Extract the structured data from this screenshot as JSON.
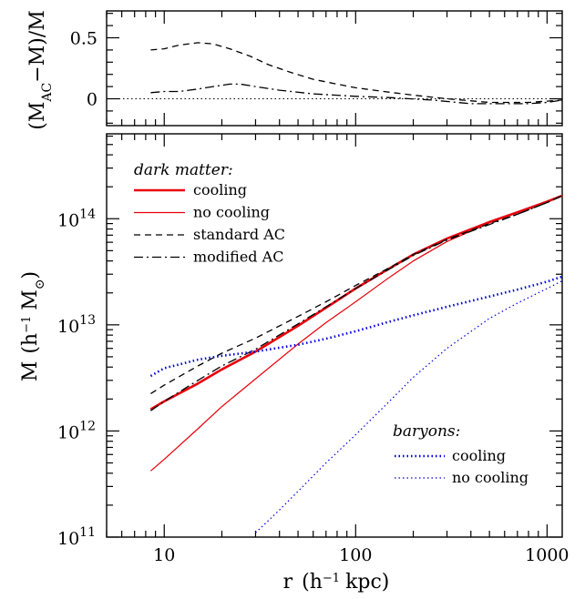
{
  "chart_data": [
    {
      "type": "line",
      "panel": "top",
      "xscale": "log",
      "xlim": [
        5,
        1200
      ],
      "ylim": [
        -0.22,
        0.72
      ],
      "yticks": [
        0,
        0.5
      ],
      "ytick_labels": [
        "0",
        "0.5"
      ],
      "ylabel_main": "(M",
      "ylabel_sub": "AC",
      "ylabel_rest": "−M)/M",
      "reference_line": 0,
      "series": [
        {
          "key": "standard",
          "color": "#000000",
          "dash": "7,5",
          "x": [
            8.5,
            10,
            12,
            15,
            18,
            22,
            28,
            35,
            45,
            60,
            80,
            100,
            140,
            200,
            300,
            500,
            800,
            1200
          ],
          "y": [
            0.4,
            0.41,
            0.44,
            0.46,
            0.45,
            0.41,
            0.35,
            0.28,
            0.22,
            0.16,
            0.12,
            0.09,
            0.06,
            0.03,
            0.0,
            -0.03,
            -0.03,
            -0.01
          ]
        },
        {
          "key": "modified",
          "color": "#000000",
          "dash": "10,4,2,4",
          "x": [
            8.5,
            10,
            12,
            15,
            18,
            22,
            25,
            30,
            40,
            60,
            100,
            150,
            250,
            400,
            600,
            800,
            1000,
            1200
          ],
          "y": [
            0.05,
            0.06,
            0.06,
            0.08,
            0.1,
            0.12,
            0.12,
            0.1,
            0.07,
            0.04,
            0.02,
            0.01,
            -0.01,
            -0.04,
            -0.04,
            -0.04,
            -0.03,
            -0.01
          ]
        }
      ]
    },
    {
      "type": "line",
      "panel": "bottom",
      "xscale": "log",
      "yscale": "log",
      "xlim": [
        5,
        1200
      ],
      "ylim_exp": [
        11,
        14.8
      ],
      "xticks": [
        10,
        100,
        1000
      ],
      "xtick_labels": [
        "10",
        "100",
        "1000"
      ],
      "ytick_exponents": [
        11,
        12,
        13,
        14
      ],
      "ytick_base": "10",
      "ytick_powers": [
        "11",
        "12",
        "13",
        "14"
      ],
      "xlabel_main": "r",
      "xlabel_paren": "(h",
      "xlabel_sup": "−1",
      "xlabel_unit": "kpc)",
      "ylabel_main": "M",
      "ylabel_paren": "(h",
      "ylabel_sup": "−1",
      "ylabel_unit": "M",
      "ylabel_sub": "⊙",
      "ylabel_close": ")",
      "legend_dm_title": "dark matter:",
      "legend_baryon_title": "baryons:",
      "series": [
        {
          "key": "dm_cooling",
          "name": "cooling",
          "group": "dark matter",
          "color": "#e8000b",
          "width": 2.6,
          "dash": "",
          "x": [
            8.5,
            10,
            15,
            20,
            30,
            50,
            70,
            100,
            150,
            200,
            300,
            500,
            700,
            1000,
            1200
          ],
          "y": [
            1600000000000.0,
            1900000000000.0,
            2800000000000.0,
            3800000000000.0,
            5600000000000.0,
            9800000000000.0,
            14500000000000.0,
            22000000000000.0,
            34000000000000.0,
            46000000000000.0,
            65000000000000.0,
            93000000000000.0,
            115000000000000.0,
            145000000000000.0,
            165000000000000.0
          ]
        },
        {
          "key": "dm_nocooling",
          "name": "no cooling",
          "group": "dark matter",
          "color": "#e8000b",
          "width": 1.2,
          "dash": "",
          "x": [
            8.5,
            10,
            15,
            20,
            30,
            50,
            70,
            100,
            150,
            200,
            300,
            500,
            700,
            1000,
            1200
          ],
          "y": [
            420000000000.0,
            540000000000.0,
            1050000000000.0,
            1700000000000.0,
            3100000000000.0,
            6600000000000.0,
            10500000000000.0,
            16500000000000.0,
            28000000000000.0,
            40000000000000.0,
            61000000000000.0,
            91000000000000.0,
            114000000000000.0,
            145000000000000.0,
            165000000000000.0
          ]
        },
        {
          "key": "dm_standard",
          "name": "standard AC",
          "group": "dark matter",
          "color": "#000000",
          "width": 1.3,
          "dash": "7,5",
          "x": [
            8.5,
            10,
            15,
            20,
            30,
            50,
            70,
            100,
            150,
            200,
            300,
            500,
            700,
            1000,
            1200
          ],
          "y": [
            2250000000000.0,
            2700000000000.0,
            4100000000000.0,
            5400000000000.0,
            7500000000000.0,
            12000000000000.0,
            16500000000000.0,
            23500000000000.0,
            34500000000000.0,
            46000000000000.0,
            64000000000000.0,
            90000000000000.0,
            110000000000000.0,
            142000000000000.0,
            165000000000000.0
          ]
        },
        {
          "key": "dm_modified",
          "name": "modified AC",
          "group": "dark matter",
          "color": "#000000",
          "width": 1.3,
          "dash": "10,4,2,4",
          "x": [
            8.5,
            10,
            15,
            20,
            30,
            50,
            70,
            100,
            150,
            200,
            300,
            500,
            700,
            1000,
            1200
          ],
          "y": [
            1550000000000.0,
            1900000000000.0,
            3000000000000.0,
            4100000000000.0,
            5900000000000.0,
            10200000000000.0,
            14800000000000.0,
            22000000000000.0,
            33500000000000.0,
            45000000000000.0,
            63000000000000.0,
            88000000000000.0,
            110000000000000.0,
            142000000000000.0,
            165000000000000.0
          ]
        },
        {
          "key": "bar_cooling",
          "name": "cooling",
          "group": "baryons",
          "color": "#0000e0",
          "width": 2.6,
          "dash": "1.5,3",
          "x": [
            8.5,
            10,
            15,
            20,
            30,
            50,
            70,
            100,
            150,
            200,
            300,
            500,
            700,
            1000,
            1200
          ],
          "y": [
            3300000000000.0,
            3900000000000.0,
            4700000000000.0,
            5100000000000.0,
            5600000000000.0,
            6500000000000.0,
            7400000000000.0,
            8700000000000.0,
            10700000000000.0,
            12300000000000.0,
            14800000000000.0,
            18500000000000.0,
            21500000000000.0,
            25500000000000.0,
            28500000000000.0
          ]
        },
        {
          "key": "bar_nocooling",
          "name": "no cooling",
          "group": "baryons",
          "color": "#0000e0",
          "width": 1.2,
          "dash": "1.5,3",
          "x": [
            30,
            40,
            50,
            70,
            100,
            150,
            200,
            300,
            500,
            700,
            1000,
            1200
          ],
          "y": [
            110000000000.0,
            180000000000.0,
            270000000000.0,
            500000000000.0,
            920000000000.0,
            1900000000000.0,
            3200000000000.0,
            6000000000000.0,
            11500000000000.0,
            16000000000000.0,
            22000000000000.0,
            26000000000000.0
          ]
        }
      ]
    }
  ]
}
